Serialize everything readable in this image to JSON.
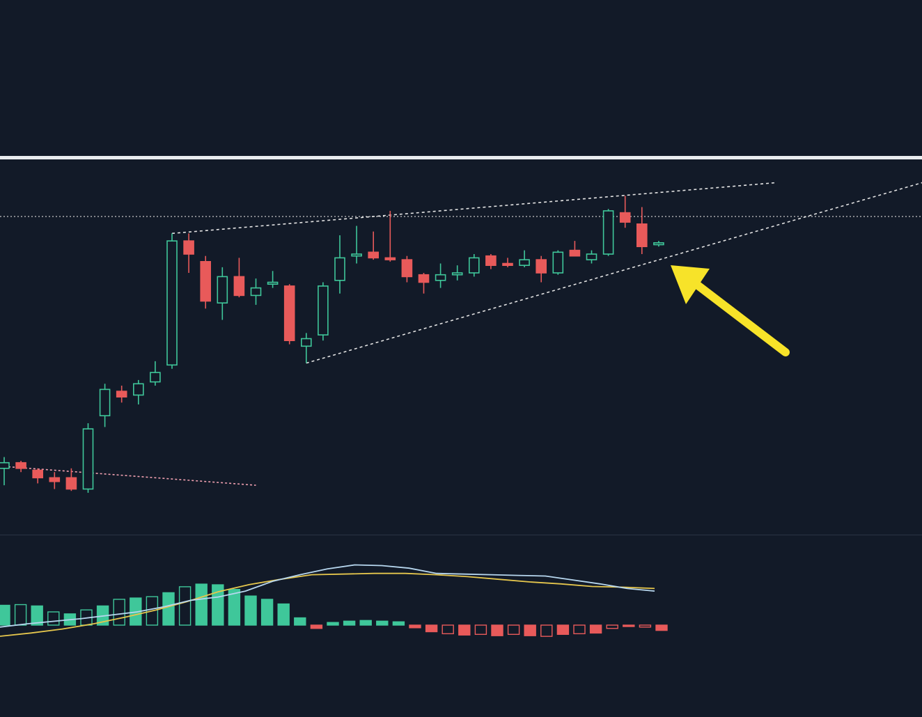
{
  "colors": {
    "background": "#121a28",
    "bullish": "#3fc79a",
    "bearish": "#e85a5a",
    "separator": "#e9ecef",
    "pane_divider": "#2a3344",
    "trendline": "#e6e6e6",
    "range_line": "#c8c8c8",
    "pink_line": "#f0a0b0",
    "arrow": "#f7e329",
    "macd_line": "#b7d7ef",
    "signal_line": "#e6c74d"
  },
  "chart_data": [
    {
      "type": "candlestick",
      "title": "",
      "xlabel": "",
      "ylabel": "",
      "ylim": [
        0,
        100
      ],
      "grid": false,
      "candles": [
        {
          "i": 0,
          "o": 18.0,
          "h": 21.0,
          "l": 13.5,
          "c": 19.5
        },
        {
          "i": 1,
          "o": 19.5,
          "h": 20.0,
          "l": 17.0,
          "c": 18.0
        },
        {
          "i": 2,
          "o": 17.5,
          "h": 18.0,
          "l": 14.0,
          "c": 15.5
        },
        {
          "i": 3,
          "o": 15.5,
          "h": 17.0,
          "l": 12.5,
          "c": 14.5
        },
        {
          "i": 4,
          "o": 15.5,
          "h": 18.0,
          "l": 12.0,
          "c": 12.5
        },
        {
          "i": 5,
          "o": 12.5,
          "h": 30.0,
          "l": 11.5,
          "c": 28.5
        },
        {
          "i": 6,
          "o": 32.0,
          "h": 40.5,
          "l": 29.0,
          "c": 39.0
        },
        {
          "i": 7,
          "o": 38.5,
          "h": 40.0,
          "l": 35.5,
          "c": 37.0
        },
        {
          "i": 8,
          "o": 37.5,
          "h": 41.5,
          "l": 35.0,
          "c": 40.5
        },
        {
          "i": 9,
          "o": 41.0,
          "h": 46.5,
          "l": 40.0,
          "c": 43.5
        },
        {
          "i": 10,
          "o": 45.5,
          "h": 80.5,
          "l": 44.5,
          "c": 78.5
        },
        {
          "i": 11,
          "o": 78.5,
          "h": 80.5,
          "l": 70.0,
          "c": 75.0
        },
        {
          "i": 12,
          "o": 73.0,
          "h": 74.5,
          "l": 60.5,
          "c": 62.5
        },
        {
          "i": 13,
          "o": 62.0,
          "h": 71.5,
          "l": 57.5,
          "c": 69.0
        },
        {
          "i": 14,
          "o": 69.0,
          "h": 74.0,
          "l": 63.5,
          "c": 64.0
        },
        {
          "i": 15,
          "o": 64.0,
          "h": 68.5,
          "l": 61.5,
          "c": 66.0
        },
        {
          "i": 16,
          "o": 67.0,
          "h": 70.5,
          "l": 66.0,
          "c": 67.5
        },
        {
          "i": 17,
          "o": 66.5,
          "h": 67.0,
          "l": 51.0,
          "c": 52.0
        },
        {
          "i": 18,
          "o": 50.5,
          "h": 54.0,
          "l": 46.0,
          "c": 52.5
        },
        {
          "i": 19,
          "o": 53.5,
          "h": 67.5,
          "l": 52.0,
          "c": 66.5
        },
        {
          "i": 20,
          "o": 68.0,
          "h": 80.0,
          "l": 64.5,
          "c": 74.0
        },
        {
          "i": 21,
          "o": 74.5,
          "h": 82.5,
          "l": 72.5,
          "c": 75.0
        },
        {
          "i": 22,
          "o": 75.5,
          "h": 81.0,
          "l": 73.5,
          "c": 74.0
        },
        {
          "i": 23,
          "o": 74.0,
          "h": 86.5,
          "l": 73.0,
          "c": 73.5
        },
        {
          "i": 24,
          "o": 73.5,
          "h": 74.5,
          "l": 67.5,
          "c": 69.0
        },
        {
          "i": 25,
          "o": 69.5,
          "h": 70.0,
          "l": 64.5,
          "c": 67.5
        },
        {
          "i": 26,
          "o": 68.0,
          "h": 72.5,
          "l": 66.0,
          "c": 69.5
        },
        {
          "i": 27,
          "o": 69.5,
          "h": 72.0,
          "l": 68.0,
          "c": 70.0
        },
        {
          "i": 28,
          "o": 70.0,
          "h": 75.0,
          "l": 69.0,
          "c": 74.0
        },
        {
          "i": 29,
          "o": 74.5,
          "h": 75.0,
          "l": 71.0,
          "c": 72.0
        },
        {
          "i": 30,
          "o": 72.5,
          "h": 74.0,
          "l": 71.5,
          "c": 72.0
        },
        {
          "i": 31,
          "o": 72.0,
          "h": 76.0,
          "l": 71.5,
          "c": 73.5
        },
        {
          "i": 32,
          "o": 73.5,
          "h": 74.5,
          "l": 67.5,
          "c": 70.0
        },
        {
          "i": 33,
          "o": 70.0,
          "h": 76.0,
          "l": 69.5,
          "c": 75.5
        },
        {
          "i": 34,
          "o": 76.0,
          "h": 78.5,
          "l": 74.5,
          "c": 74.5
        },
        {
          "i": 35,
          "o": 73.5,
          "h": 76.0,
          "l": 72.5,
          "c": 75.0
        },
        {
          "i": 36,
          "o": 75.0,
          "h": 87.0,
          "l": 74.5,
          "c": 86.5
        },
        {
          "i": 37,
          "o": 86.0,
          "h": 90.5,
          "l": 82.0,
          "c": 83.5
        },
        {
          "i": 38,
          "o": 83.0,
          "h": 87.5,
          "l": 75.0,
          "c": 77.0
        },
        {
          "i": 39,
          "o": 77.5,
          "h": 78.5,
          "l": 77.0,
          "c": 78.0
        }
      ],
      "horizontal_level": 85.0,
      "trendlines": [
        {
          "style": "dotted",
          "from": [
            10,
            80.5
          ],
          "to": [
            46,
            94.0
          ]
        },
        {
          "style": "dotted",
          "from": [
            18,
            46.0
          ],
          "to": [
            57,
            97.0
          ]
        }
      ],
      "annotations": [
        {
          "type": "arrow",
          "points_to_candle": 39,
          "color": "yellow"
        }
      ]
    },
    {
      "type": "macd",
      "title": "",
      "xlabel": "",
      "ylabel": "",
      "ylim": [
        -2.5,
        7.5
      ],
      "grid": false,
      "histogram": [
        3.0,
        3.1,
        2.9,
        2.0,
        1.7,
        2.3,
        2.9,
        3.9,
        4.1,
        4.3,
        4.9,
        5.8,
        6.2,
        6.1,
        5.4,
        4.4,
        3.9,
        3.2,
        1.1,
        -0.5,
        0.4,
        0.6,
        0.7,
        0.6,
        0.5,
        -0.4,
        -1.0,
        -1.3,
        -1.5,
        -1.4,
        -1.6,
        -1.4,
        -1.6,
        -1.7,
        -1.4,
        -1.3,
        -1.2,
        -0.5,
        -0.2,
        -0.3,
        -0.8
      ],
      "macd_line": [
        -0.3,
        0.2,
        0.6,
        1.0,
        1.5,
        2.0,
        2.8,
        3.8,
        4.3,
        5.2,
        6.7,
        7.7,
        8.6,
        9.2,
        9.1,
        8.7,
        7.9,
        7.8,
        7.7,
        7.6,
        7.5,
        6.9,
        6.3,
        5.6,
        5.2
      ],
      "signal_line": [
        -1.7,
        -1.2,
        -0.6,
        0.2,
        1.2,
        2.3,
        3.6,
        5.1,
        6.2,
        7.0,
        7.7,
        7.8,
        7.9,
        7.9,
        7.7,
        7.4,
        7.0,
        6.6,
        6.3,
        5.9,
        5.8,
        5.6
      ]
    }
  ]
}
